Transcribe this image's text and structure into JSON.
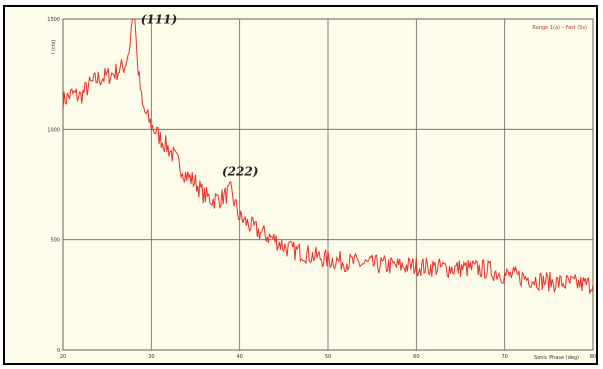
{
  "chart_data": {
    "type": "line",
    "title": "",
    "legend_text": "Range 1(a) – Fast (5s)",
    "legend_position": "top-right",
    "xlabel": "Sonic Phase (deg)",
    "ylabel": "I (cts)",
    "xlim": [
      20,
      80
    ],
    "ylim": [
      0,
      1500
    ],
    "grid": true,
    "x_ticks": [
      20,
      30,
      40,
      50,
      60,
      70,
      80
    ],
    "x_tick_labels": [
      "20",
      "30",
      "40",
      "50",
      "60",
      "70",
      "80"
    ],
    "y_ticks": [
      0,
      500,
      1000,
      1500
    ],
    "y_tick_labels": [
      "0",
      "500",
      "1000",
      "1500"
    ],
    "line_color": "#e8312b",
    "annotations": [
      {
        "text": "(111)",
        "x": 28.8,
        "y": 1480
      },
      {
        "text": "(222)",
        "x": 38.0,
        "y": 790
      }
    ],
    "series": [
      {
        "values_x": [
          20,
          21,
          22,
          23,
          24,
          25,
          26,
          27,
          27.6,
          28.0,
          28.4,
          29,
          30,
          31,
          32,
          33,
          34,
          35,
          36,
          37,
          38,
          39,
          40,
          41,
          42,
          43,
          44,
          45,
          46,
          47,
          48,
          49,
          50,
          52,
          54,
          56,
          58,
          60,
          62,
          64,
          66,
          68,
          70,
          72,
          74,
          76,
          78,
          80
        ],
        "values_y": [
          1130,
          1160,
          1150,
          1200,
          1230,
          1240,
          1260,
          1290,
          1380,
          1640,
          1310,
          1100,
          1020,
          960,
          910,
          850,
          790,
          760,
          700,
          680,
          690,
          720,
          600,
          570,
          540,
          520,
          500,
          470,
          450,
          445,
          430,
          420,
          410,
          400,
          390,
          385,
          380,
          380,
          375,
          370,
          370,
          365,
          340,
          330,
          315,
          305,
          300,
          295
        ]
      }
    ]
  }
}
